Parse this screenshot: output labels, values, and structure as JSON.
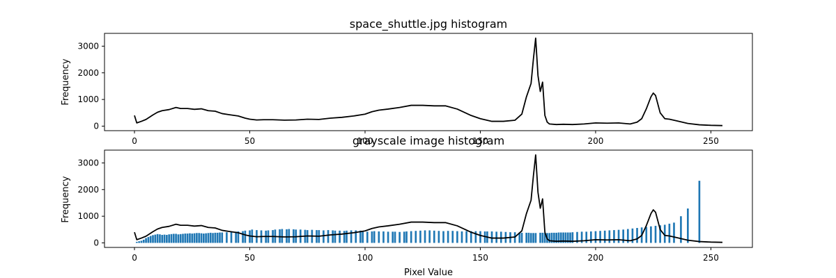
{
  "colors": {
    "line": "#000000",
    "bar": "#1f77b4",
    "axes": "#000000",
    "background": "#ffffff"
  },
  "chart_data": [
    {
      "type": "line",
      "title": "space_shuttle.jpg histogram",
      "xlabel": "",
      "ylabel": "Frequency",
      "xlim": [
        -13,
        268
      ],
      "ylim": [
        -170,
        3480
      ],
      "xticks": [
        0,
        50,
        100,
        150,
        200,
        250
      ],
      "yticks": [
        0,
        1000,
        2000,
        3000
      ],
      "grid": false,
      "series": [
        {
          "x": [
            0,
            1,
            3,
            5,
            8,
            10,
            12,
            15,
            18,
            20,
            23,
            26,
            29,
            32,
            35,
            38,
            41,
            45,
            48,
            50,
            53,
            56,
            60,
            65,
            70,
            75,
            80,
            85,
            90,
            95,
            100,
            103,
            106,
            110,
            115,
            120,
            125,
            130,
            135,
            140,
            143,
            146,
            150,
            155,
            160,
            165,
            168,
            170,
            172,
            173,
            174,
            175,
            176,
            177,
            178,
            179,
            180,
            183,
            186,
            190,
            195,
            200,
            205,
            210,
            215,
            218,
            220,
            222,
            224,
            225,
            226,
            228,
            230,
            232,
            235,
            240,
            245,
            250,
            255
          ],
          "y": [
            400,
            120,
            180,
            250,
            420,
            520,
            580,
            620,
            700,
            660,
            660,
            630,
            650,
            580,
            560,
            470,
            430,
            380,
            300,
            260,
            230,
            240,
            240,
            225,
            230,
            260,
            250,
            300,
            330,
            380,
            450,
            540,
            600,
            640,
            700,
            780,
            780,
            760,
            760,
            640,
            520,
            400,
            280,
            180,
            180,
            220,
            450,
            1100,
            1600,
            2500,
            3300,
            1900,
            1300,
            1650,
            400,
            150,
            80,
            60,
            70,
            60,
            80,
            120,
            110,
            120,
            80,
            150,
            280,
            650,
            1100,
            1240,
            1150,
            500,
            280,
            260,
            200,
            100,
            50,
            30,
            20
          ]
        }
      ]
    },
    {
      "type": "bar",
      "title": "grayscale image histogram",
      "xlabel": "Pixel Value",
      "ylabel": "Frequency",
      "xlim": [
        -13,
        268
      ],
      "ylim": [
        -170,
        3480
      ],
      "xticks": [
        0,
        50,
        100,
        150,
        200,
        250
      ],
      "yticks": [
        0,
        1000,
        2000,
        3000
      ],
      "grid": false,
      "bars": {
        "x": [
          1,
          2,
          3,
          4,
          5,
          6,
          7,
          8,
          9,
          10,
          11,
          12,
          13,
          14,
          15,
          16,
          17,
          18,
          19,
          20,
          21,
          22,
          23,
          24,
          25,
          26,
          27,
          28,
          29,
          30,
          31,
          32,
          33,
          34,
          35,
          36,
          37,
          38,
          40,
          42,
          44,
          45,
          47,
          48,
          50,
          51,
          53,
          55,
          57,
          58,
          60,
          61,
          63,
          64,
          66,
          67,
          69,
          70,
          72,
          74,
          75,
          77,
          79,
          80,
          82,
          84,
          86,
          87,
          89,
          91,
          92,
          94,
          96,
          98,
          99,
          101,
          103,
          104,
          106,
          108,
          110,
          112,
          113,
          115,
          117,
          118,
          120,
          122,
          124,
          126,
          128,
          130,
          132,
          134,
          136,
          138,
          140,
          142,
          144,
          146,
          148,
          150,
          152,
          153,
          155,
          157,
          159,
          161,
          163,
          165,
          167,
          168,
          170,
          171,
          172,
          173,
          174,
          176,
          177,
          178,
          179,
          180,
          181,
          182,
          183,
          184,
          185,
          186,
          187,
          188,
          189,
          190,
          192,
          194,
          196,
          198,
          200,
          202,
          204,
          206,
          208,
          210,
          212,
          214,
          216,
          218,
          220,
          222,
          224,
          226,
          228,
          230,
          232,
          234,
          237,
          240,
          245
        ],
        "values": [
          40,
          60,
          80,
          120,
          180,
          220,
          260,
          290,
          310,
          330,
          320,
          300,
          310,
          300,
          320,
          330,
          340,
          340,
          320,
          330,
          340,
          350,
          350,
          360,
          350,
          360,
          370,
          370,
          360,
          350,
          360,
          370,
          380,
          370,
          380,
          380,
          390,
          390,
          400,
          410,
          420,
          430,
          440,
          460,
          470,
          500,
          480,
          470,
          460,
          470,
          480,
          500,
          510,
          520,
          510,
          520,
          510,
          500,
          500,
          490,
          480,
          490,
          480,
          480,
          470,
          480,
          470,
          460,
          460,
          450,
          460,
          470,
          470,
          460,
          440,
          420,
          430,
          440,
          430,
          430,
          420,
          420,
          420,
          410,
          420,
          430,
          440,
          450,
          460,
          470,
          470,
          460,
          450,
          440,
          450,
          450,
          440,
          430,
          440,
          440,
          440,
          440,
          430,
          430,
          430,
          420,
          420,
          410,
          400,
          400,
          390,
          380,
          380,
          380,
          370,
          370,
          370,
          380,
          380,
          380,
          370,
          370,
          380,
          380,
          380,
          390,
          390,
          390,
          390,
          390,
          390,
          400,
          410,
          420,
          420,
          430,
          440,
          450,
          460,
          470,
          480,
          490,
          500,
          520,
          540,
          560,
          580,
          600,
          620,
          640,
          660,
          680,
          720,
          760,
          1000,
          1290,
          2330
        ]
      },
      "series": [
        {
          "x": [
            0,
            1,
            3,
            5,
            8,
            10,
            12,
            15,
            18,
            20,
            23,
            26,
            29,
            32,
            35,
            38,
            41,
            45,
            48,
            50,
            53,
            56,
            60,
            65,
            70,
            75,
            80,
            85,
            90,
            95,
            100,
            103,
            106,
            110,
            115,
            120,
            125,
            130,
            135,
            140,
            143,
            146,
            150,
            155,
            160,
            165,
            168,
            170,
            172,
            173,
            174,
            175,
            176,
            177,
            178,
            179,
            180,
            183,
            186,
            190,
            195,
            200,
            205,
            210,
            215,
            218,
            220,
            222,
            224,
            225,
            226,
            228,
            230,
            232,
            235,
            240,
            245,
            250,
            255
          ],
          "y": [
            400,
            120,
            180,
            250,
            420,
            520,
            580,
            620,
            700,
            660,
            660,
            630,
            650,
            580,
            560,
            470,
            430,
            380,
            300,
            260,
            230,
            240,
            240,
            225,
            230,
            260,
            250,
            300,
            330,
            380,
            450,
            540,
            600,
            640,
            700,
            780,
            780,
            760,
            760,
            640,
            520,
            400,
            280,
            180,
            180,
            220,
            450,
            1100,
            1600,
            2500,
            3300,
            1900,
            1300,
            1650,
            400,
            150,
            80,
            60,
            70,
            60,
            80,
            120,
            110,
            120,
            80,
            150,
            280,
            650,
            1100,
            1240,
            1150,
            500,
            280,
            260,
            200,
            100,
            50,
            30,
            20
          ]
        }
      ]
    }
  ]
}
